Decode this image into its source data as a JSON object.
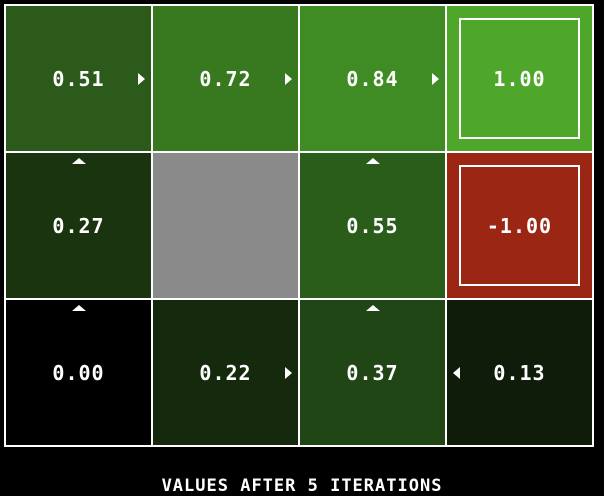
{
  "caption": "VALUES AFTER 5 ITERATIONS",
  "colors": {
    "background": "#000000",
    "grid_line": "#ffffff",
    "wall": "#8a8a8a",
    "positive_terminal": "#4ea72a",
    "negative_terminal": "#9b2614"
  },
  "grid": {
    "rows": 3,
    "cols": 4,
    "cells": [
      {
        "row": 0,
        "col": 0,
        "value": "0.51",
        "arrow": "right",
        "color": "#2c5a1a",
        "kind": "state"
      },
      {
        "row": 0,
        "col": 1,
        "value": "0.72",
        "arrow": "right",
        "color": "#38781f",
        "kind": "state"
      },
      {
        "row": 0,
        "col": 2,
        "value": "0.84",
        "arrow": "right",
        "color": "#408c24",
        "kind": "state"
      },
      {
        "row": 0,
        "col": 3,
        "value": "1.00",
        "arrow": null,
        "color": "#4ea72a",
        "kind": "terminal"
      },
      {
        "row": 1,
        "col": 0,
        "value": "0.27",
        "arrow": "up",
        "color": "#1b3410",
        "kind": "state"
      },
      {
        "row": 1,
        "col": 1,
        "value": "",
        "arrow": null,
        "color": "#8a8a8a",
        "kind": "wall"
      },
      {
        "row": 1,
        "col": 2,
        "value": "0.55",
        "arrow": "up",
        "color": "#2a5c1a",
        "kind": "state"
      },
      {
        "row": 1,
        "col": 3,
        "value": "-1.00",
        "arrow": null,
        "color": "#9b2614",
        "kind": "terminal"
      },
      {
        "row": 2,
        "col": 0,
        "value": "0.00",
        "arrow": "up",
        "color": "#000000",
        "kind": "state"
      },
      {
        "row": 2,
        "col": 1,
        "value": "0.22",
        "arrow": "right",
        "color": "#15290d",
        "kind": "state"
      },
      {
        "row": 2,
        "col": 2,
        "value": "0.37",
        "arrow": "up",
        "color": "#214616",
        "kind": "state"
      },
      {
        "row": 2,
        "col": 3,
        "value": "0.13",
        "arrow": "left",
        "color": "#101c0a",
        "kind": "state"
      }
    ]
  }
}
